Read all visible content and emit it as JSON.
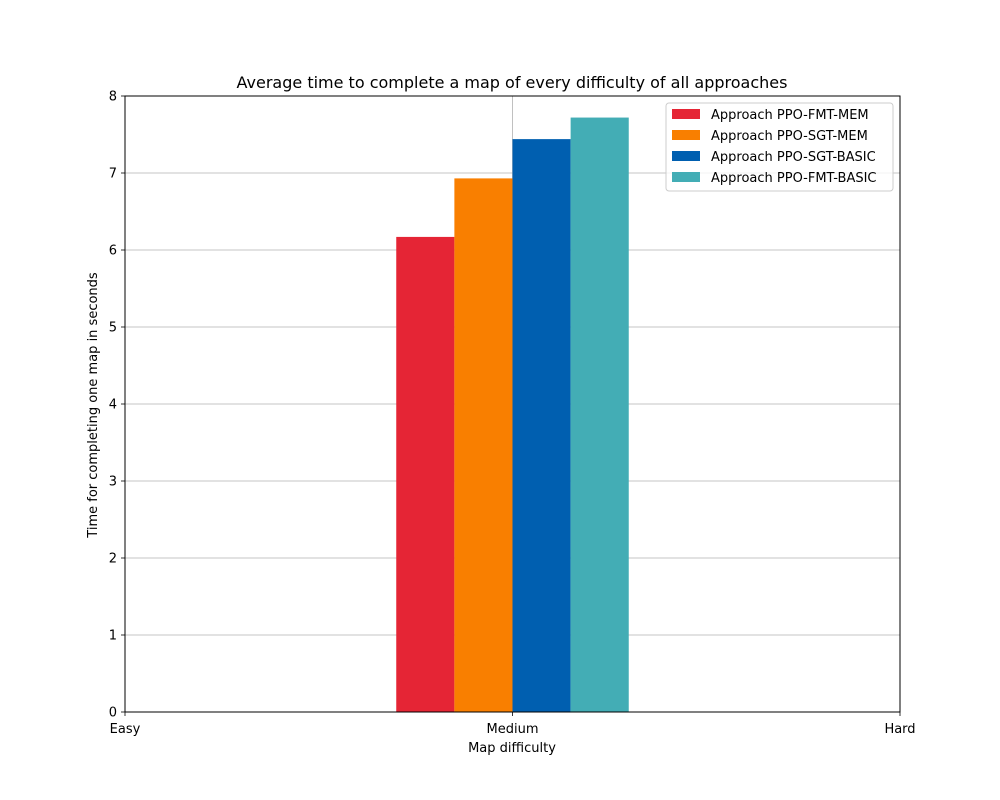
{
  "chart_data": {
    "type": "bar",
    "title": "Average time to complete a map of every difficulty of all approaches",
    "xlabel": "Map difficulty",
    "ylabel": "Time for completing one map in seconds",
    "x_ticks": [
      "Easy",
      "Medium",
      "Hard"
    ],
    "xlim": [
      0,
      2
    ],
    "ylim": [
      0,
      8
    ],
    "y_ticks": [
      0,
      1,
      2,
      3,
      4,
      5,
      6,
      7,
      8
    ],
    "grid": true,
    "legend_position": "top-right",
    "categories": [
      "Medium"
    ],
    "series": [
      {
        "name": "Approach PPO-FMT-MEM",
        "values": [
          6.17
        ],
        "color": "#e52535"
      },
      {
        "name": "Approach PPO-SGT-MEM",
        "values": [
          6.93
        ],
        "color": "#f97f00"
      },
      {
        "name": "Approach PPO-SGT-BASIC",
        "values": [
          7.44
        ],
        "color": "#005fb0"
      },
      {
        "name": "Approach PPO-FMT-BASIC",
        "values": [
          7.72
        ],
        "color": "#43adb5"
      }
    ]
  }
}
